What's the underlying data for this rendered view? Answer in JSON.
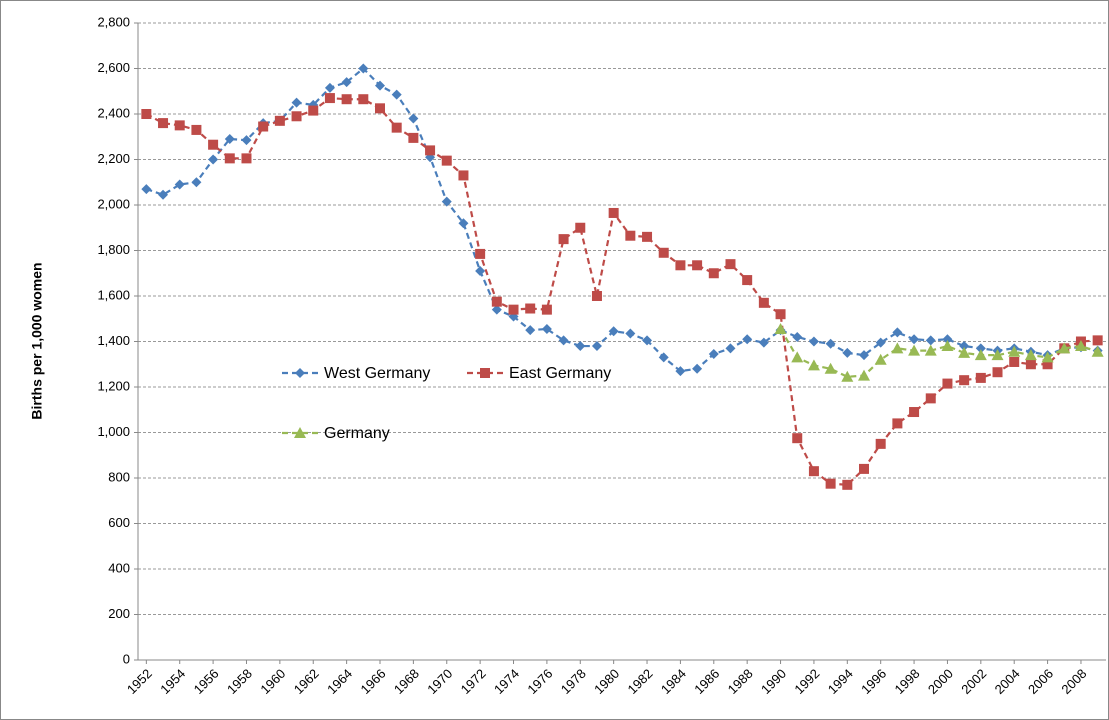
{
  "chart_data": {
    "type": "line",
    "y_label": "Births per 1,000 women",
    "x": [
      1952,
      1953,
      1954,
      1955,
      1956,
      1957,
      1958,
      1959,
      1960,
      1961,
      1962,
      1963,
      1964,
      1965,
      1966,
      1967,
      1968,
      1969,
      1970,
      1971,
      1972,
      1973,
      1974,
      1975,
      1976,
      1977,
      1978,
      1979,
      1980,
      1981,
      1982,
      1983,
      1984,
      1985,
      1986,
      1987,
      1988,
      1989,
      1990,
      1991,
      1992,
      1993,
      1994,
      1995,
      1996,
      1997,
      1998,
      1999,
      2000,
      2001,
      2002,
      2003,
      2004,
      2005,
      2006,
      2007,
      2008,
      2009
    ],
    "xlim": [
      1951.5,
      2009.5
    ],
    "xticks": [
      1952,
      1954,
      1956,
      1958,
      1960,
      1962,
      1964,
      1966,
      1968,
      1970,
      1972,
      1974,
      1976,
      1978,
      1980,
      1982,
      1984,
      1986,
      1988,
      1990,
      1992,
      1994,
      1996,
      1998,
      2000,
      2002,
      2004,
      2006,
      2008
    ],
    "ylim": [
      0,
      2800
    ],
    "yticks": [
      0,
      200,
      400,
      600,
      800,
      {
        "value": 1000,
        "label": "1,000"
      },
      {
        "value": 1200,
        "label": "1,200"
      },
      {
        "value": 1400,
        "label": "1,400"
      },
      {
        "value": 1600,
        "label": "1,600"
      },
      {
        "value": 1800,
        "label": "1,800"
      },
      {
        "value": 2000,
        "label": "2,000"
      },
      {
        "value": 2200,
        "label": "2,200"
      },
      {
        "value": 2400,
        "label": "2,400"
      },
      {
        "value": 2600,
        "label": "2,600"
      },
      {
        "value": 2800,
        "label": "2,800"
      }
    ],
    "grid": true,
    "series": [
      {
        "name": "West Germany",
        "color": "#4a7ebb",
        "marker": "diamond",
        "values": [
          2070,
          2045,
          2090,
          2100,
          2200,
          2290,
          2285,
          2360,
          2370,
          2450,
          2440,
          2515,
          2540,
          2600,
          2525,
          2485,
          2380,
          2210,
          2015,
          1920,
          1710,
          1540,
          1510,
          1450,
          1455,
          1405,
          1380,
          1380,
          1445,
          1435,
          1405,
          1330,
          1270,
          1280,
          1345,
          1370,
          1410,
          1395,
          1450,
          1420,
          1400,
          1390,
          1350,
          1340,
          1395,
          1440,
          1410,
          1405,
          1410,
          1380,
          1370,
          1360,
          1370,
          1355,
          1340,
          1370,
          1375,
          1360
        ]
      },
      {
        "name": "East Germany",
        "color": "#be4b48",
        "marker": "square",
        "values": [
          2400,
          2360,
          2350,
          2330,
          2265,
          2205,
          2205,
          2345,
          2370,
          2390,
          2415,
          2470,
          2465,
          2465,
          2425,
          2340,
          2295,
          2240,
          2195,
          2130,
          1785,
          1575,
          1540,
          1545,
          1540,
          1850,
          1900,
          1600,
          1965,
          1865,
          1860,
          1790,
          1735,
          1735,
          1700,
          1740,
          1670,
          1570,
          1520,
          975,
          830,
          775,
          770,
          840,
          950,
          1040,
          1090,
          1150,
          1215,
          1230,
          1240,
          1265,
          1310,
          1300,
          1300,
          1370,
          1400,
          1405
        ]
      },
      {
        "name": "Germany",
        "color": "#98b954",
        "marker": "triangle",
        "values": [
          null,
          null,
          null,
          null,
          null,
          null,
          null,
          null,
          null,
          null,
          null,
          null,
          null,
          null,
          null,
          null,
          null,
          null,
          null,
          null,
          null,
          null,
          null,
          null,
          null,
          null,
          null,
          null,
          null,
          null,
          null,
          null,
          null,
          null,
          null,
          null,
          null,
          null,
          1455,
          1330,
          1295,
          1280,
          1245,
          1250,
          1320,
          1370,
          1360,
          1360,
          1380,
          1350,
          1340,
          1340,
          1355,
          1340,
          1330,
          1370,
          1380,
          1355
        ]
      }
    ]
  }
}
